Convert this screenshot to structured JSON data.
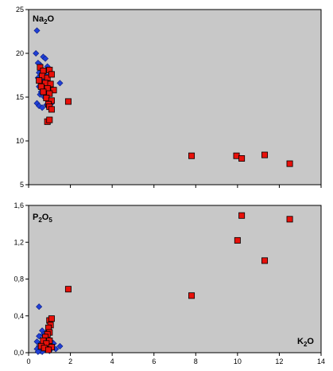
{
  "chart_data": [
    {
      "type": "scatter",
      "label": {
        "main": "Na",
        "sub": "2",
        "tail": "O"
      },
      "xlim": [
        0,
        14
      ],
      "ylim": [
        5,
        25
      ],
      "y_ticks": [
        "5",
        "10",
        "15",
        "20",
        "25"
      ],
      "y_tick_values": [
        5,
        10,
        15,
        20,
        25
      ],
      "grid": false,
      "series": [
        {
          "marker": "diamond",
          "color": "#1f3fd6",
          "points": [
            [
              0.4,
              22.6
            ],
            [
              0.35,
              20.0
            ],
            [
              0.7,
              19.6
            ],
            [
              0.8,
              19.4
            ],
            [
              0.55,
              18.7
            ],
            [
              0.6,
              18.3
            ],
            [
              0.9,
              18.5
            ],
            [
              0.5,
              17.8
            ],
            [
              0.75,
              17.6
            ],
            [
              0.45,
              17.2
            ],
            [
              0.65,
              16.8
            ],
            [
              0.85,
              17.0
            ],
            [
              1.0,
              16.6
            ],
            [
              1.5,
              16.6
            ],
            [
              0.5,
              16.2
            ],
            [
              0.7,
              15.9
            ],
            [
              0.9,
              15.6
            ],
            [
              0.55,
              15.3
            ],
            [
              0.8,
              14.9
            ],
            [
              1.0,
              14.6
            ],
            [
              1.1,
              14.3
            ],
            [
              0.4,
              14.3
            ],
            [
              0.5,
              14.0
            ],
            [
              0.65,
              13.8
            ],
            [
              0.75,
              15.0
            ],
            [
              0.6,
              16.5
            ],
            [
              0.95,
              17.4
            ],
            [
              0.45,
              18.9
            ],
            [
              0.7,
              17.1
            ],
            [
              0.85,
              14.1
            ],
            [
              0.6,
              15.6
            ]
          ]
        },
        {
          "marker": "square",
          "color": "#e8100a",
          "points": [
            [
              0.55,
              18.4
            ],
            [
              0.7,
              18.0
            ],
            [
              1.0,
              18.1
            ],
            [
              0.65,
              17.4
            ],
            [
              0.9,
              17.2
            ],
            [
              1.1,
              17.6
            ],
            [
              0.5,
              16.9
            ],
            [
              0.8,
              16.6
            ],
            [
              1.05,
              16.5
            ],
            [
              0.6,
              16.2
            ],
            [
              0.9,
              16.0
            ],
            [
              1.2,
              15.8
            ],
            [
              0.7,
              15.6
            ],
            [
              1.0,
              15.4
            ],
            [
              0.85,
              14.9
            ],
            [
              1.1,
              14.6
            ],
            [
              0.95,
              14.2
            ],
            [
              1.0,
              13.9
            ],
            [
              1.1,
              13.6
            ],
            [
              0.9,
              12.2
            ],
            [
              1.0,
              12.4
            ],
            [
              1.9,
              14.5
            ],
            [
              7.8,
              8.3
            ],
            [
              9.95,
              8.3
            ],
            [
              10.2,
              8.0
            ],
            [
              11.3,
              8.4
            ],
            [
              12.5,
              7.4
            ]
          ]
        }
      ]
    },
    {
      "type": "scatter",
      "label": {
        "main": "P",
        "sub": "2",
        "tail": "O",
        "sub2": "5"
      },
      "xlim": [
        0,
        14
      ],
      "ylim": [
        0,
        1.6
      ],
      "y_ticks": [
        "0,0",
        "0,4",
        "0,8",
        "1,2",
        "1,6"
      ],
      "y_tick_values": [
        0,
        0.4,
        0.8,
        1.2,
        1.6
      ],
      "x_ticks": [
        "0",
        "2",
        "4",
        "6",
        "8",
        "10",
        "12",
        "14"
      ],
      "x_tick_values": [
        0,
        2,
        4,
        6,
        8,
        10,
        12,
        14
      ],
      "xlabel": {
        "main": "K",
        "sub": "2",
        "tail": "O"
      },
      "grid": false,
      "series": [
        {
          "marker": "diamond",
          "color": "#1f3fd6",
          "points": [
            [
              0.5,
              0.5
            ],
            [
              0.65,
              0.24
            ],
            [
              0.5,
              0.18
            ],
            [
              0.8,
              0.15
            ],
            [
              0.4,
              0.12
            ],
            [
              0.6,
              0.1
            ],
            [
              0.9,
              0.09
            ],
            [
              0.5,
              0.07
            ],
            [
              0.7,
              0.05
            ],
            [
              0.4,
              0.04
            ],
            [
              0.8,
              0.03
            ],
            [
              0.55,
              0.02
            ],
            [
              1.0,
              0.02
            ],
            [
              0.65,
              0.01
            ],
            [
              0.45,
              0.01
            ],
            [
              1.1,
              0.12
            ],
            [
              1.2,
              0.1
            ],
            [
              1.5,
              0.07
            ],
            [
              0.7,
              0.2
            ],
            [
              0.9,
              0.14
            ],
            [
              0.6,
              0.06
            ],
            [
              0.75,
              0.16
            ],
            [
              1.3,
              0.04
            ]
          ]
        },
        {
          "marker": "square",
          "color": "#e8100a",
          "points": [
            [
              1.0,
              0.35
            ],
            [
              1.1,
              0.37
            ],
            [
              1.05,
              0.3
            ],
            [
              0.95,
              0.27
            ],
            [
              1.0,
              0.22
            ],
            [
              0.9,
              0.2
            ],
            [
              0.8,
              0.17
            ],
            [
              0.7,
              0.13
            ],
            [
              1.0,
              0.13
            ],
            [
              0.85,
              0.1
            ],
            [
              0.6,
              0.07
            ],
            [
              0.75,
              0.05
            ],
            [
              1.1,
              0.06
            ],
            [
              0.95,
              0.03
            ],
            [
              1.9,
              0.69
            ],
            [
              7.8,
              0.62
            ],
            [
              10.0,
              1.22
            ],
            [
              10.2,
              1.49
            ],
            [
              11.3,
              1.0
            ],
            [
              12.5,
              1.45
            ]
          ]
        }
      ]
    }
  ]
}
